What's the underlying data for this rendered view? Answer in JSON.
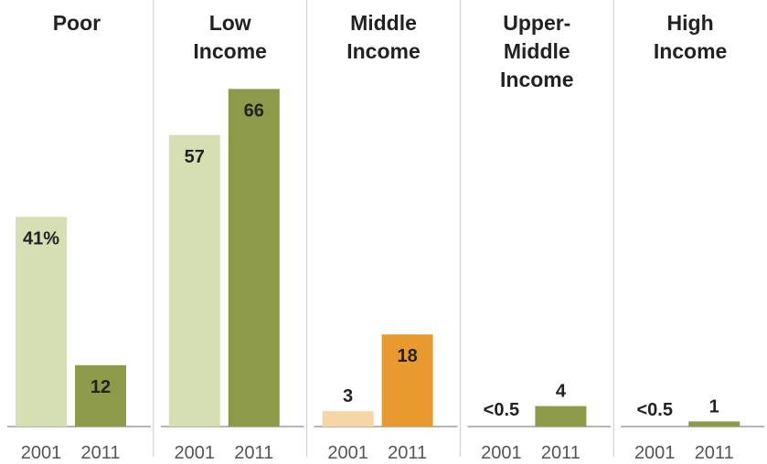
{
  "chart_data": {
    "type": "bar",
    "ylim": [
      0,
      70
    ],
    "categories": [
      "2001",
      "2011"
    ],
    "panels": [
      {
        "title": [
          "Poor"
        ],
        "values": [
          41,
          12
        ],
        "labels": [
          "41%",
          "12"
        ],
        "colors": [
          "#d6dfb4",
          "#8d9a4a"
        ]
      },
      {
        "title": [
          "Low",
          "Income"
        ],
        "values": [
          57,
          66
        ],
        "labels": [
          "57",
          "66"
        ],
        "colors": [
          "#d6dfb4",
          "#8d9a4a"
        ]
      },
      {
        "title": [
          "Middle",
          "Income"
        ],
        "values": [
          3,
          18
        ],
        "labels": [
          "3",
          "18"
        ],
        "colors": [
          "#f6d6a6",
          "#e89a2e"
        ]
      },
      {
        "title": [
          "Upper-",
          "Middle",
          "Income"
        ],
        "values": [
          0.3,
          4
        ],
        "labels": [
          "<0.5",
          "4"
        ],
        "colors": [
          "#d6dfb4",
          "#8d9a4a"
        ]
      },
      {
        "title": [
          "High",
          "Income"
        ],
        "values": [
          0.3,
          1
        ],
        "labels": [
          "<0.5",
          "1"
        ],
        "colors": [
          "#d6dfb4",
          "#8d9a4a"
        ]
      }
    ]
  }
}
